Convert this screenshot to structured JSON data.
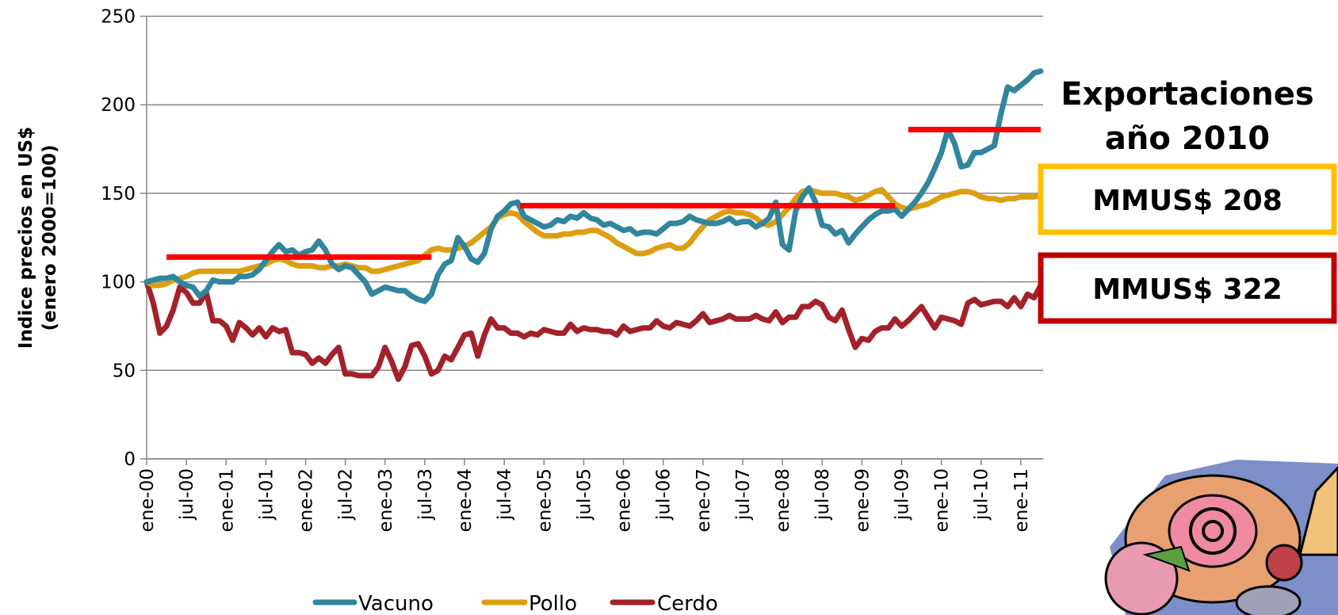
{
  "chart_data": {
    "type": "line",
    "y_axis_label": [
      "Indice precios en US$",
      "(enero 2000=100)"
    ],
    "categories": [
      "ene-00",
      null,
      null,
      null,
      null,
      null,
      "jul-00",
      null,
      null,
      null,
      null,
      null,
      "ene-01",
      null,
      null,
      null,
      null,
      null,
      "jul-01",
      null,
      null,
      null,
      null,
      null,
      "ene-02",
      null,
      null,
      null,
      null,
      null,
      "jul-02",
      null,
      null,
      null,
      null,
      null,
      "ene-03",
      null,
      null,
      null,
      null,
      null,
      "jul-03",
      null,
      null,
      null,
      null,
      null,
      "ene-04",
      null,
      null,
      null,
      null,
      null,
      "jul-04",
      null,
      null,
      null,
      null,
      null,
      "ene-05",
      null,
      null,
      null,
      null,
      null,
      "jul-05",
      null,
      null,
      null,
      null,
      null,
      "ene-06",
      null,
      null,
      null,
      null,
      null,
      "jul-06",
      null,
      null,
      null,
      null,
      null,
      "ene-07",
      null,
      null,
      null,
      null,
      null,
      "jul-07",
      null,
      null,
      null,
      null,
      null,
      "ene-08",
      null,
      null,
      null,
      null,
      null,
      "jul-08",
      null,
      null,
      null,
      null,
      null,
      "ene-09",
      null,
      null,
      null,
      null,
      null,
      "jul-09",
      null,
      null,
      null,
      null,
      null,
      "ene-10",
      null,
      null,
      null,
      null,
      null,
      "jul-10",
      null,
      null,
      null,
      null,
      null,
      "ene-11",
      null,
      null,
      null
    ],
    "series": [
      {
        "name": "Vacuno",
        "color": "#31859c",
        "values": [
          100,
          101,
          102,
          102,
          103,
          100,
          98,
          97,
          92,
          95,
          101,
          100,
          100,
          100,
          103,
          103,
          104,
          107,
          112,
          117,
          121,
          117,
          118,
          115,
          117,
          118,
          123,
          118,
          110,
          107,
          109,
          108,
          104,
          100,
          93,
          95,
          97,
          96,
          95,
          95,
          92,
          90,
          89,
          93,
          104,
          110,
          112,
          125,
          120,
          113,
          111,
          116,
          130,
          137,
          140,
          144,
          145,
          137,
          135,
          133,
          131,
          132,
          135,
          134,
          137,
          136,
          139,
          136,
          135,
          132,
          133,
          131,
          129,
          130,
          127,
          128,
          128,
          127,
          130,
          133,
          133,
          134,
          137,
          135,
          134,
          133,
          133,
          134,
          136,
          133,
          134,
          134,
          131,
          133,
          136,
          145,
          121,
          118,
          140,
          148,
          153,
          145,
          132,
          131,
          127,
          129,
          122,
          127,
          131,
          135,
          138,
          140,
          140,
          141,
          137,
          141,
          145,
          150,
          156,
          164,
          173,
          186,
          178,
          165,
          166,
          173,
          173,
          175,
          177,
          195,
          210,
          208,
          211,
          214,
          218,
          219
        ]
      },
      {
        "name": "Pollo",
        "color": "#dd9f12",
        "values": [
          100,
          98,
          98,
          99,
          101,
          102,
          103,
          105,
          106,
          106,
          106,
          106,
          106,
          106,
          106,
          107,
          108,
          109,
          110,
          112,
          113,
          112,
          110,
          109,
          109,
          109,
          108,
          108,
          109,
          109,
          110,
          109,
          108,
          108,
          106,
          106,
          107,
          108,
          109,
          110,
          111,
          112,
          115,
          118,
          119,
          118,
          118,
          119,
          120,
          122,
          125,
          128,
          131,
          136,
          138,
          139,
          138,
          134,
          131,
          128,
          126,
          126,
          126,
          127,
          127,
          128,
          128,
          129,
          129,
          127,
          125,
          122,
          120,
          118,
          116,
          116,
          117,
          119,
          120,
          121,
          119,
          119,
          122,
          127,
          131,
          135,
          137,
          139,
          140,
          139,
          139,
          138,
          136,
          133,
          132,
          134,
          138,
          142,
          147,
          151,
          152,
          151,
          150,
          150,
          150,
          149,
          148,
          146,
          147,
          149,
          151,
          152,
          148,
          144,
          142,
          141,
          142,
          143,
          144,
          146,
          148,
          149,
          150,
          151,
          151,
          150,
          148,
          147,
          147,
          146,
          147,
          147,
          148,
          148,
          148,
          149
        ]
      },
      {
        "name": "Cerdo",
        "color": "#a3222a",
        "values": [
          100,
          88,
          71,
          75,
          84,
          97,
          94,
          88,
          88,
          94,
          78,
          78,
          75,
          67,
          77,
          74,
          70,
          74,
          69,
          74,
          72,
          73,
          60,
          60,
          59,
          54,
          57,
          54,
          59,
          63,
          48,
          48,
          47,
          47,
          47,
          52,
          63,
          55,
          45,
          52,
          64,
          65,
          58,
          48,
          50,
          58,
          56,
          63,
          70,
          71,
          58,
          70,
          79,
          74,
          74,
          71,
          71,
          69,
          71,
          70,
          73,
          72,
          71,
          71,
          76,
          72,
          74,
          73,
          73,
          72,
          72,
          70,
          75,
          72,
          73,
          74,
          74,
          78,
          75,
          74,
          77,
          76,
          75,
          78,
          82,
          77,
          78,
          79,
          81,
          79,
          79,
          79,
          81,
          79,
          78,
          83,
          77,
          80,
          80,
          86,
          86,
          89,
          87,
          80,
          78,
          84,
          73,
          63,
          68,
          67,
          72,
          74,
          74,
          79,
          75,
          78,
          82,
          86,
          80,
          74,
          80,
          79,
          78,
          76,
          88,
          90,
          87,
          88,
          89,
          89,
          86,
          91,
          86,
          93,
          91,
          98
        ]
      }
    ],
    "ylim": [
      0,
      250
    ],
    "yticks": [
      0,
      50,
      100,
      150,
      200,
      250
    ],
    "grid": true,
    "reference_lines": [
      {
        "value": 114,
        "color": "#ff0000"
      },
      {
        "value": 143,
        "color": "#ff0000"
      },
      {
        "value": 186,
        "color": "#ff0000"
      }
    ],
    "annotation": [
      "Exportaciones",
      "año 2010"
    ],
    "boxes": [
      {
        "text": "MMUS$ 208",
        "color": "#ffc000"
      },
      {
        "text": "MMUS$ 322",
        "color": "#c00000"
      }
    ],
    "legend": "bottom"
  }
}
